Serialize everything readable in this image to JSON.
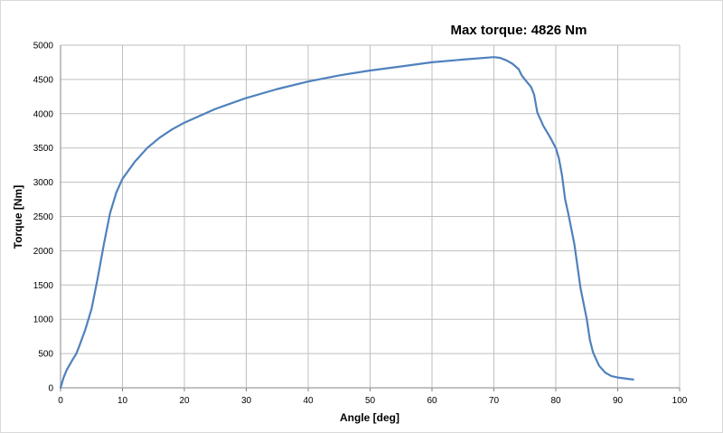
{
  "chart_data": {
    "type": "line",
    "title": "Max torque: 4826 Nm",
    "xlabel": "Angle [deg]",
    "ylabel": "Torque [Nm]",
    "xlim": [
      0,
      100
    ],
    "ylim": [
      0,
      5000
    ],
    "x_ticks": [
      "0",
      "10",
      "20",
      "30",
      "40",
      "50",
      "60",
      "70",
      "80",
      "90",
      "100"
    ],
    "y_ticks": [
      "0",
      "500",
      "1000",
      "1500",
      "2000",
      "2500",
      "3000",
      "3500",
      "4000",
      "4500",
      "5000"
    ],
    "grid": true,
    "legend": "none",
    "series_color": "#4f81bd",
    "series": [
      {
        "points": [
          [
            0,
            0
          ],
          [
            0.5,
            150
          ],
          [
            1,
            260
          ],
          [
            2,
            420
          ],
          [
            2.5,
            490
          ],
          [
            3,
            600
          ],
          [
            4,
            850
          ],
          [
            5,
            1150
          ],
          [
            6,
            1600
          ],
          [
            7,
            2100
          ],
          [
            8,
            2550
          ],
          [
            9,
            2850
          ],
          [
            10,
            3050
          ],
          [
            12,
            3300
          ],
          [
            14,
            3500
          ],
          [
            16,
            3650
          ],
          [
            18,
            3770
          ],
          [
            20,
            3870
          ],
          [
            25,
            4070
          ],
          [
            30,
            4230
          ],
          [
            35,
            4360
          ],
          [
            40,
            4470
          ],
          [
            45,
            4560
          ],
          [
            50,
            4630
          ],
          [
            55,
            4690
          ],
          [
            60,
            4750
          ],
          [
            65,
            4790
          ],
          [
            70,
            4826
          ],
          [
            71,
            4815
          ],
          [
            72,
            4780
          ],
          [
            73,
            4730
          ],
          [
            74,
            4650
          ],
          [
            74.5,
            4560
          ],
          [
            75,
            4500
          ],
          [
            76,
            4390
          ],
          [
            76.5,
            4280
          ],
          [
            77,
            4020
          ],
          [
            78,
            3820
          ],
          [
            79,
            3670
          ],
          [
            80,
            3500
          ],
          [
            80.5,
            3350
          ],
          [
            81,
            3100
          ],
          [
            81.5,
            2750
          ],
          [
            82,
            2550
          ],
          [
            83,
            2100
          ],
          [
            84,
            1450
          ],
          [
            85,
            1000
          ],
          [
            85.5,
            700
          ],
          [
            86,
            520
          ],
          [
            86.5,
            420
          ],
          [
            87,
            320
          ],
          [
            88,
            220
          ],
          [
            89,
            170
          ],
          [
            90,
            150
          ],
          [
            92.5,
            120
          ]
        ]
      }
    ]
  }
}
